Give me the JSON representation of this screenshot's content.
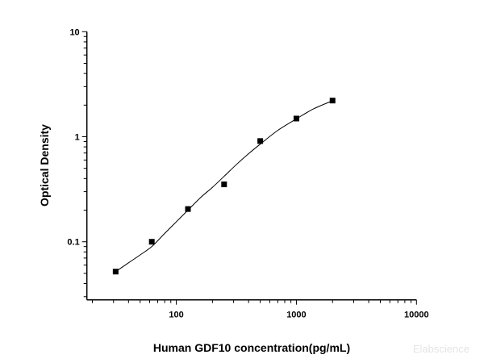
{
  "chart_data": {
    "type": "scatter",
    "title": "",
    "xlabel": "Human GDF10 concentration(pg/mL)",
    "ylabel": "Optical Density",
    "x_scale": "log",
    "y_scale": "log",
    "xlim": [
      18,
      10000
    ],
    "ylim": [
      0.028,
      10
    ],
    "x_ticks": [
      "100",
      "1000",
      "10000"
    ],
    "x_tick_values": [
      100,
      1000,
      10000
    ],
    "y_ticks": [
      "0.1",
      "1",
      "10"
    ],
    "y_tick_values": [
      0.1,
      1,
      10
    ],
    "grid": false,
    "marker": "square",
    "color": "#000000",
    "points": {
      "x": [
        31.25,
        62.5,
        125,
        250,
        500,
        1000,
        2000
      ],
      "y": [
        0.052,
        0.1,
        0.205,
        0.352,
        0.91,
        1.49,
        2.21
      ]
    },
    "fit_curve": {
      "x": [
        31.25,
        40,
        50,
        62.5,
        80,
        100,
        125,
        160,
        200,
        250,
        320,
        400,
        500,
        700,
        1000,
        1400,
        2000
      ],
      "y": [
        0.052,
        0.063,
        0.075,
        0.09,
        0.12,
        0.155,
        0.2,
        0.265,
        0.33,
        0.42,
        0.55,
        0.69,
        0.85,
        1.15,
        1.48,
        1.85,
        2.2
      ]
    }
  },
  "watermark": "Elabscience"
}
